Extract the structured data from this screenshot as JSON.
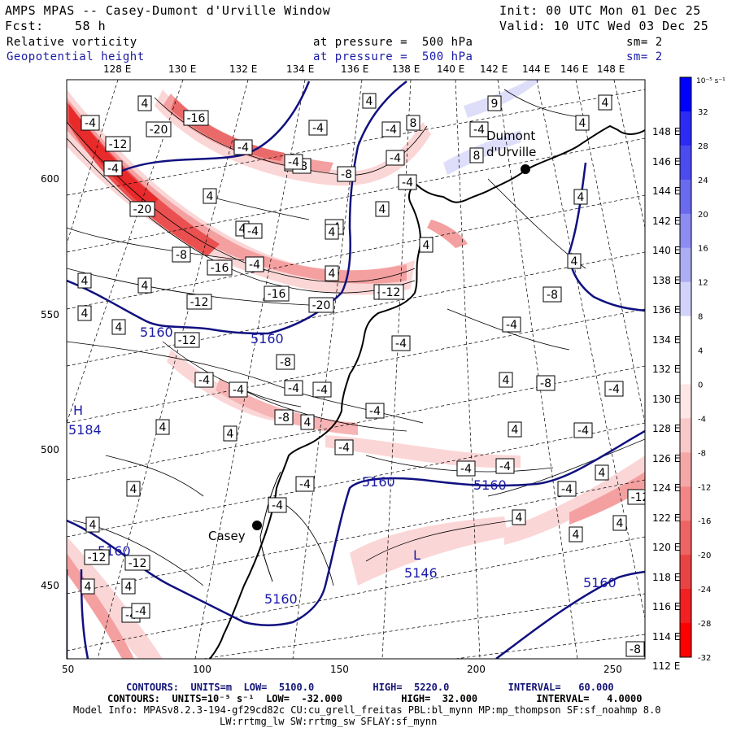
{
  "header": {
    "title": "AMPS MPAS -- Casey-Dumont d'Urville Window",
    "init": "Init: 00 UTC Mon 01 Dec 25",
    "fcst_label": "Fcst:",
    "fcst_value": "58 h",
    "valid": "Valid: 10 UTC Wed 03 Dec 25",
    "field1_name": "Relative vorticity",
    "field1_level": "at pressure =  500 hPa",
    "field1_sm": "sm= 2",
    "field2_name": "Geopotential height",
    "field2_level": "at pressure =  500 hPa",
    "field2_sm": "sm= 2"
  },
  "axes": {
    "top_lon": [
      "128 E",
      "130 E",
      "132 E",
      "134 E",
      "136 E",
      "138 E",
      "140 E",
      "142 E",
      "144 E",
      "146 E",
      "148 E"
    ],
    "right_lon": [
      "148 E",
      "146 E",
      "144 E",
      "142 E",
      "140 E",
      "138 E",
      "136 E",
      "134 E",
      "132 E",
      "130 E",
      "128 E",
      "126 E",
      "124 E",
      "122 E",
      "120 E",
      "118 E",
      "116 E",
      "114 E",
      "112 E"
    ],
    "left_y": [
      "600",
      "550",
      "500",
      "450"
    ],
    "bottom_x": [
      "50",
      "100",
      "150",
      "200",
      "250"
    ]
  },
  "colorbar": {
    "unit": "10⁻⁵ s⁻¹",
    "labels": [
      "32",
      "28",
      "24",
      "20",
      "16",
      "12",
      "8",
      "4",
      "0",
      "-4",
      "-8",
      "-12",
      "-16",
      "-20",
      "-24",
      "-28",
      "-32"
    ],
    "colors": [
      "#0000ff",
      "#2b2bf5",
      "#4b4bf0",
      "#6a6aee",
      "#8c8cf2",
      "#adadf5",
      "#d2d2fa",
      "#ffffff",
      "#ffffff",
      "#fde6e6",
      "#f9c8c8",
      "#f5a7a7",
      "#f28686",
      "#ee6464",
      "#ea4343",
      "#f22020",
      "#ff0000"
    ]
  },
  "stations": {
    "casey": "Casey",
    "dumont": "Dumont\nd'Urville"
  },
  "map_labels": {
    "height": [
      "5160",
      "5160",
      "5160",
      "5160",
      "5160",
      "5160",
      "5160",
      "5184",
      "5146"
    ],
    "high": "H",
    "low": "L",
    "vort_boxes": [
      "4",
      "-4",
      "-16",
      "-20",
      "-12",
      "-16",
      "-20",
      "-12",
      "-8",
      "-12",
      "-4",
      "-8",
      "-8",
      "-4",
      "-4",
      "-4",
      "-4",
      "4",
      "8",
      "-4",
      "8",
      "9",
      "4",
      "4",
      "4",
      "4",
      "-8",
      "-4",
      "4",
      "4",
      "4",
      "-20",
      "-4",
      "-4",
      "-16",
      "-12",
      "4",
      "4",
      "4",
      "-12",
      "-4",
      "-4",
      "4",
      "4",
      "4",
      "4",
      "-8",
      "-4",
      "-4",
      "-4",
      "-4",
      "4",
      "-8",
      "-4",
      "-4",
      "4",
      "4",
      "4",
      "4",
      "-4",
      "-8",
      "-4",
      "4",
      "-4",
      "-4",
      "-4",
      "4",
      "4",
      "4",
      "4",
      "-12",
      "-4",
      "-8",
      "-4",
      "4",
      "-4",
      "-4",
      "4",
      "4",
      "4",
      "-4",
      "-12",
      "-12",
      "-8",
      "-4",
      "4",
      "-4"
    ]
  },
  "footer": {
    "line1": "CONTOURS:  UNITS=m  LOW=  5100.0          HIGH=  5220.0          INTERVAL=   60.000",
    "line2": "CONTOURS:  UNITS=10⁻⁵ s⁻¹  LOW=  -32.000          HIGH=  32.000          INTERVAL=   4.0000",
    "line3": "Model Info: MPASv8.2.3-194-gf29cd82c CU:cu_grell_freitas PBL:bl_mynn MP:mp_thompson SF:sf_noahmp 8.0",
    "line4": "LW:rrtmg_lw SW:rrtmg_sw SFLAY:sf_mynn"
  }
}
